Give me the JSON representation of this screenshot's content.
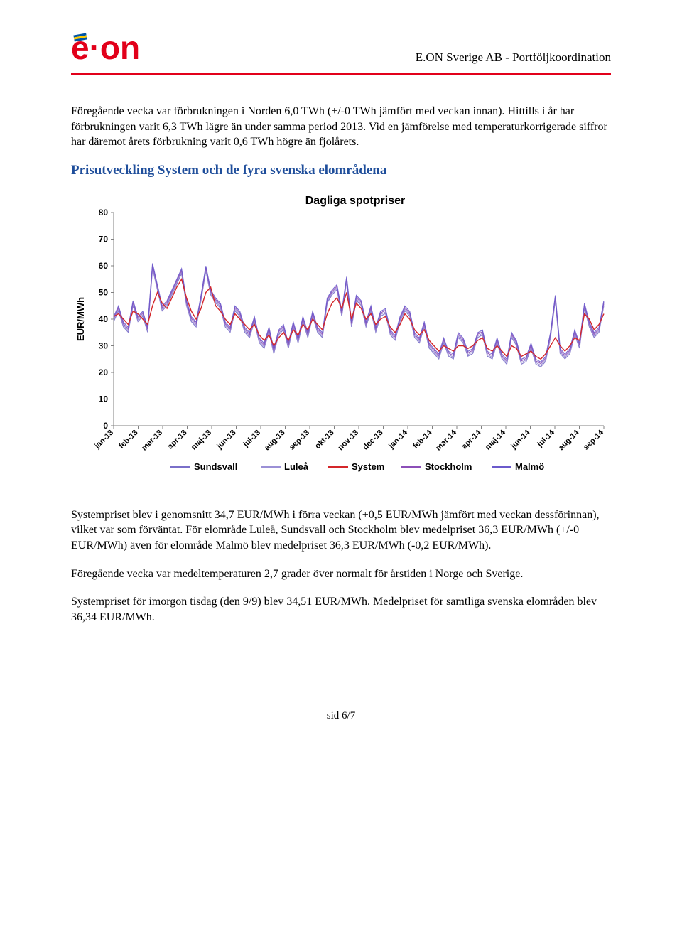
{
  "header": {
    "title": "E.ON Sverige AB - Portföljkoordination",
    "logo_text": "e·on"
  },
  "para1_a": "Föregående vecka var förbrukningen i Norden 6,0 TWh (+/-0 TWh jämfört med veckan innan). Hittills i år har förbrukningen varit 6,3 TWh lägre än under samma period 2013. Vid en jämförelse med temperaturkorrigerade siffror har däremot årets förbrukning varit 0,6 TWh ",
  "para1_u": "högre",
  "para1_b": " än fjolårets.",
  "section_title": "Prisutveckling System och de fyra svenska elområdena",
  "chart": {
    "title": "Dagliga spotpriser",
    "ylabel": "EUR/MWh",
    "ymin": 0,
    "ymax": 80,
    "ystep": 10,
    "x_labels": [
      "jan-13",
      "feb-13",
      "mar-13",
      "apr-13",
      "maj-13",
      "jun-13",
      "jul-13",
      "aug-13",
      "sep-13",
      "okt-13",
      "nov-13",
      "dec-13",
      "jan-14",
      "feb-14",
      "mar-14",
      "apr-14",
      "maj-14",
      "jun-14",
      "jul-14",
      "aug-14",
      "sep-14"
    ],
    "legend": [
      "Sundsvall",
      "Luleå",
      "System",
      "Stockholm",
      "Malmö"
    ],
    "series_colors": {
      "Sundsvall": "#7a6fc9",
      "Luleå": "#9b90d6",
      "System": "#d4262a",
      "Stockholm": "#8c4fb8",
      "Malmö": "#6b5acc"
    },
    "grid_color": "#c0c0c0",
    "axis_color": "#808080",
    "background": "#ffffff",
    "label_font": "Arial",
    "tick_fontsize": 12,
    "system_values": [
      41,
      42,
      40,
      38,
      43,
      42,
      40,
      38,
      45,
      50,
      46,
      44,
      48,
      52,
      55,
      48,
      43,
      40,
      44,
      50,
      52,
      45,
      43,
      40,
      38,
      42,
      40,
      38,
      36,
      38,
      34,
      32,
      34,
      30,
      33,
      35,
      32,
      36,
      34,
      38,
      36,
      40,
      38,
      36,
      42,
      46,
      48,
      44,
      50,
      40,
      46,
      44,
      40,
      42,
      38,
      40,
      41,
      37,
      35,
      38,
      42,
      40,
      36,
      34,
      36,
      32,
      30,
      28,
      30,
      29,
      28,
      30,
      30,
      29,
      30,
      32,
      33,
      29,
      28,
      30,
      28,
      26,
      30,
      29,
      26,
      27,
      28,
      26,
      25,
      27,
      30,
      33,
      30,
      28,
      30,
      33,
      32,
      42,
      40,
      36,
      38,
      42
    ],
    "other_values": [
      40,
      44,
      38,
      36,
      46,
      40,
      42,
      36,
      60,
      52,
      44,
      46,
      50,
      54,
      58,
      46,
      40,
      38,
      48,
      59,
      50,
      47,
      45,
      38,
      36,
      44,
      42,
      36,
      34,
      40,
      32,
      30,
      36,
      28,
      35,
      37,
      30,
      38,
      32,
      40,
      34,
      42,
      36,
      34,
      47,
      50,
      52,
      42,
      55,
      38,
      48,
      46,
      38,
      44,
      36,
      42,
      43,
      35,
      33,
      40,
      44,
      42,
      34,
      32,
      38,
      30,
      28,
      26,
      32,
      27,
      26,
      34,
      32,
      27,
      28,
      34,
      35,
      27,
      26,
      32,
      26,
      24,
      34,
      31,
      24,
      25,
      30,
      24,
      23,
      25,
      34,
      48,
      28,
      26,
      28,
      35,
      30,
      45,
      38,
      34,
      36,
      46
    ]
  },
  "para2": "Systempriset blev i genomsnitt 34,7 EUR/MWh i förra veckan (+0,5 EUR/MWh jämfört med veckan dessförinnan), vilket var som förväntat. För elområde Luleå, Sundsvall och Stockholm blev medelpriset 36,3 EUR/MWh (+/-0 EUR/MWh) även för elområde Malmö blev medelpriset 36,3 EUR/MWh (-0,2 EUR/MWh).",
  "para3": "Föregående vecka var medeltemperaturen 2,7 grader över normalt för årstiden i Norge och Sverige.",
  "para4": "Systempriset för imorgon tisdag (den 9/9) blev 34,51 EUR/MWh. Medelpriset för samtliga svenska elområden blev 36,34 EUR/MWh.",
  "footer": "sid 6/7"
}
